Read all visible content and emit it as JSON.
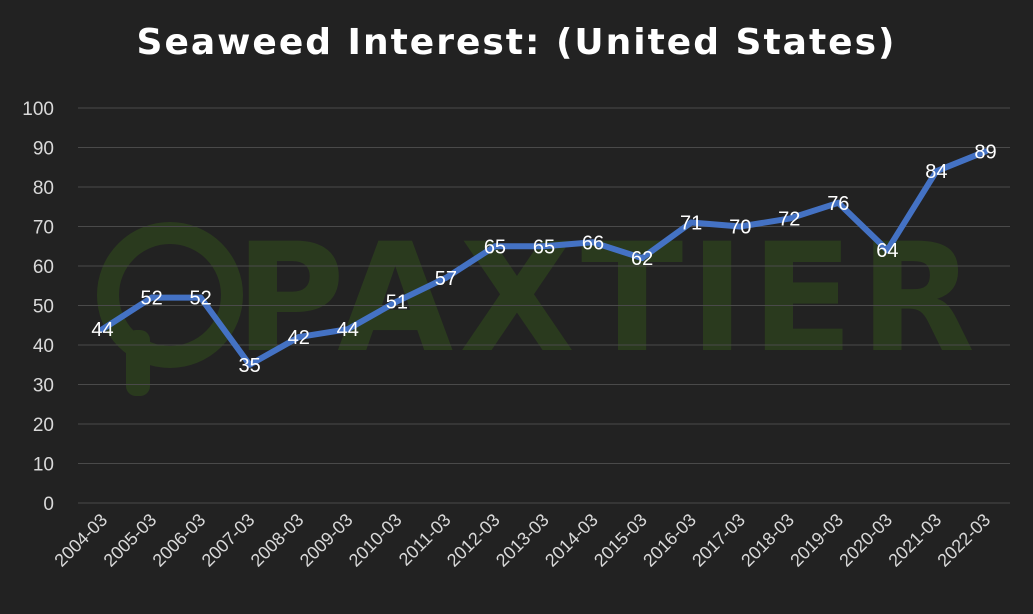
{
  "chart_data": {
    "type": "line",
    "title": "Seaweed Interest: (United States)",
    "xlabel": "",
    "ylabel": "",
    "ylim": [
      0,
      100
    ],
    "yticks": [
      "0",
      "10",
      "20",
      "30",
      "40",
      "50",
      "60",
      "70",
      "80",
      "90",
      "100"
    ],
    "grid": true,
    "legend": "none",
    "categories": [
      "2004-03",
      "2005-03",
      "2006-03",
      "2007-03",
      "2008-03",
      "2009-03",
      "2010-03",
      "2011-03",
      "2012-03",
      "2013-03",
      "2014-03",
      "2015-03",
      "2016-03",
      "2017-03",
      "2018-03",
      "2019-03",
      "2020-03",
      "2021-03",
      "2022-03"
    ],
    "series": [
      {
        "values": [
          44,
          52,
          52,
          35,
          42,
          44,
          51,
          57,
          65,
          65,
          66,
          62,
          71,
          70,
          72,
          76,
          64,
          84,
          89
        ],
        "color": "#4472c4"
      }
    ]
  },
  "watermark": "PAXTIER",
  "colors": {
    "background": "#222222",
    "line": "#4472c4",
    "grid": "#4a4a4a",
    "text": "#d9d9d9",
    "watermark": "#2a3a1e"
  }
}
